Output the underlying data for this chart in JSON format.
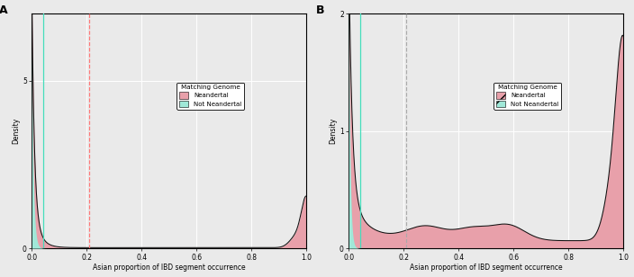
{
  "title_A": "A",
  "title_B": "B",
  "xlabel": "Asian proportion of IBD segment occurrence",
  "ylabel": "Density",
  "xlim": [
    0.0,
    1.0
  ],
  "ylim_A": [
    0,
    7
  ],
  "ylim_B": [
    0,
    2
  ],
  "yticks_A": [
    0,
    5
  ],
  "yticks_B": [
    0,
    1,
    2
  ],
  "xticks": [
    0.0,
    0.2,
    0.4,
    0.6,
    0.8,
    1.0
  ],
  "vline_pink": 0.21,
  "vline_pink_color": "#FF7777",
  "vline_gray_B": 0.21,
  "vline_gray_color": "#AAAAAA",
  "cyan_vline": 0.04,
  "cyan_color": "#44DDBB",
  "neandertal_color": "#E8A0AA",
  "not_neandertal_color": "#A0E8D8",
  "legend_title": "Matching Genome",
  "legend_label1": "Neandertal",
  "legend_label2": "Not Neandertal",
  "background_color": "#EAEAEA",
  "grid_color": "#FFFFFF",
  "line_color": "#111111",
  "line_width": 0.9
}
